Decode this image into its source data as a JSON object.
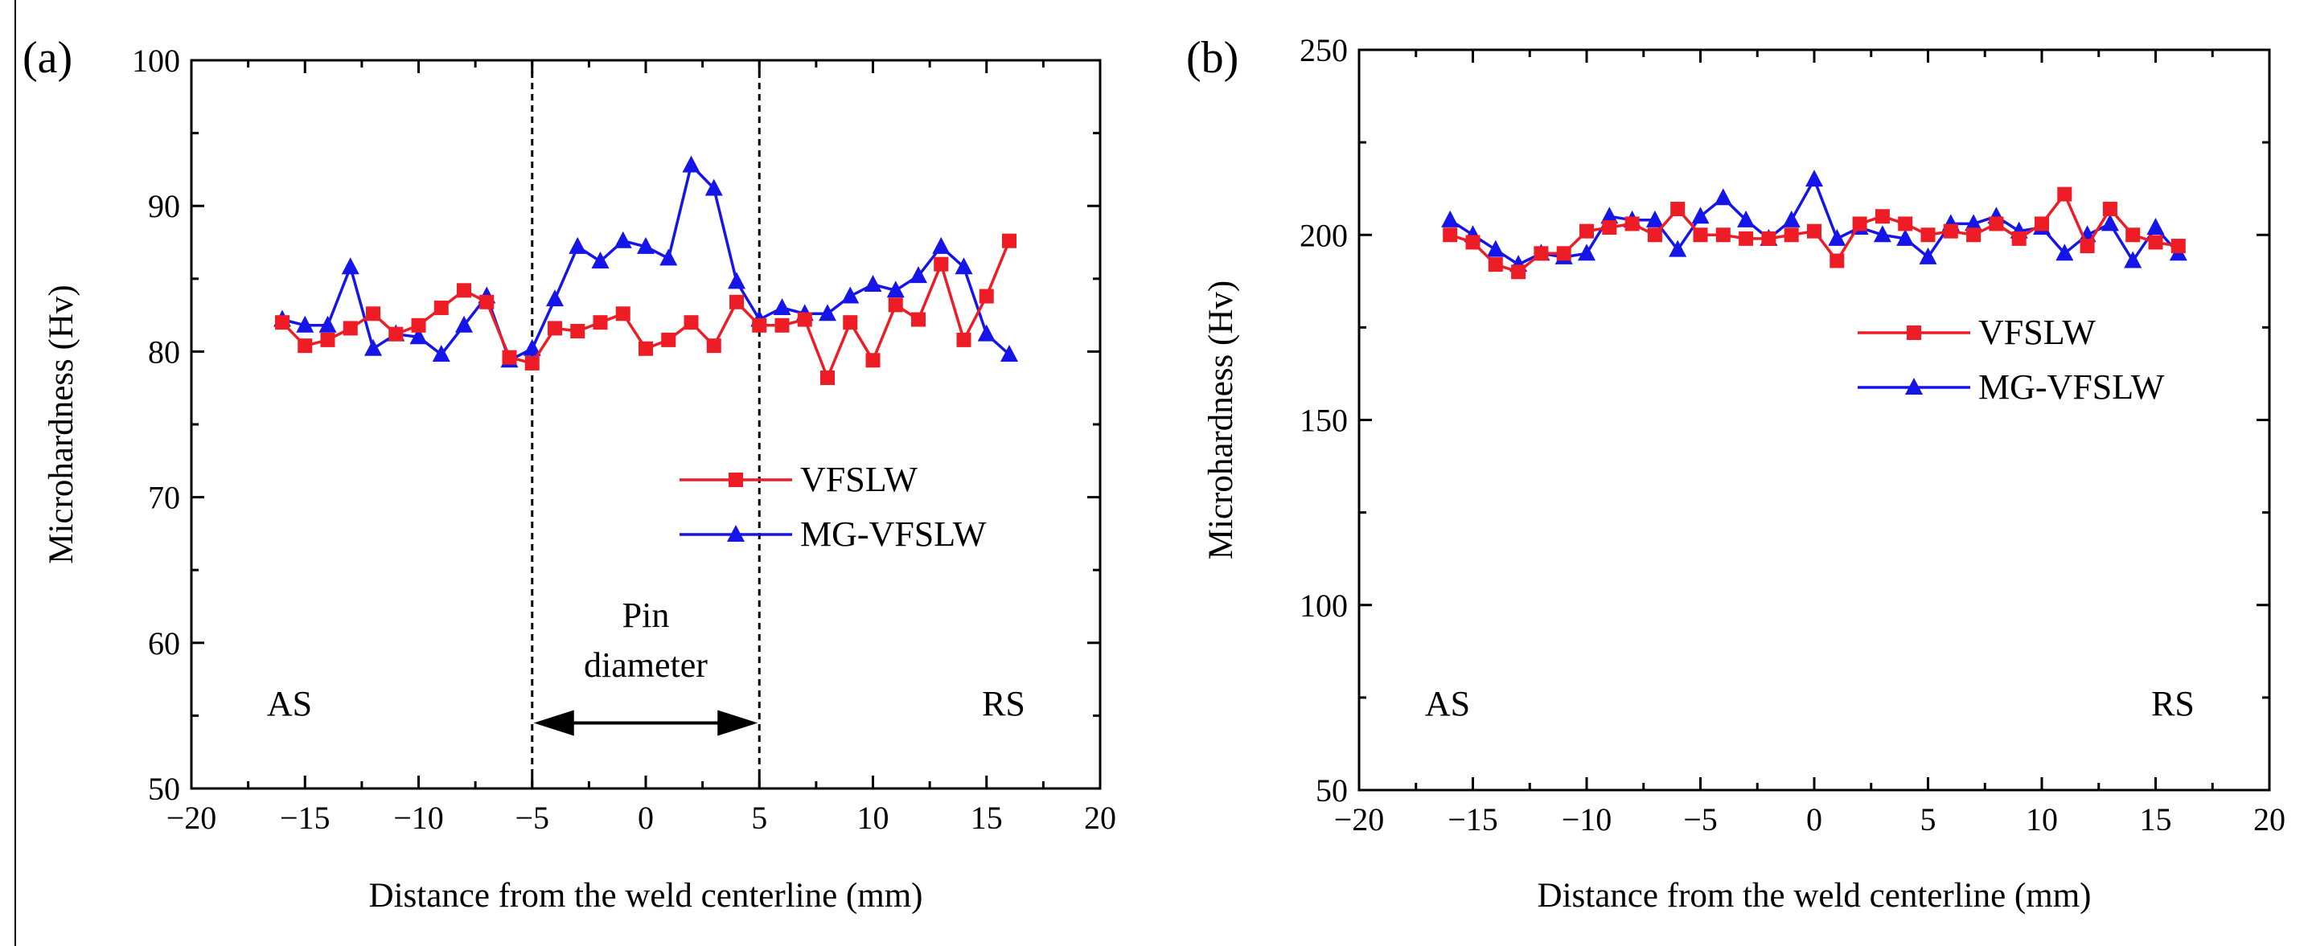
{
  "chart_data": [
    {
      "type": "line",
      "panel_label": "(a)",
      "xlabel": "Distance from the weld centerline (mm)",
      "ylabel": "Microhardness (Hv)",
      "xlim": [
        -20,
        20
      ],
      "ylim": [
        50,
        100
      ],
      "xticks": [
        -20,
        -15,
        -10,
        -5,
        0,
        5,
        10,
        15,
        20
      ],
      "yticks": [
        50,
        60,
        70,
        80,
        90,
        100
      ],
      "xtick_labels": [
        "−20",
        "−15",
        "−10",
        "−5",
        "0",
        "5",
        "10",
        "15",
        "20"
      ],
      "ytick_labels": [
        "50",
        "60",
        "70",
        "80",
        "90",
        "100"
      ],
      "legend": "center-right",
      "annotations": {
        "as": "AS",
        "rs": "RS",
        "pin_line1": "Pin",
        "pin_line2": "diameter"
      },
      "vlines": [
        -5,
        5
      ],
      "pin_arrow_y": 54.5,
      "series": [
        {
          "name": "VFSLW",
          "color": "#ee1c25",
          "marker": "square",
          "x": [
            -16,
            -15,
            -14,
            -13,
            -12,
            -11,
            -10,
            -9,
            -8,
            -7,
            -6,
            -5,
            -4,
            -3,
            -2,
            -1,
            0,
            1,
            2,
            3,
            4,
            5,
            6,
            7,
            8,
            9,
            10,
            11,
            12,
            13,
            14,
            15,
            16
          ],
          "values": [
            82.0,
            80.4,
            80.8,
            81.6,
            82.6,
            81.2,
            81.8,
            83.0,
            84.2,
            83.4,
            79.6,
            79.2,
            81.6,
            81.4,
            82.0,
            82.6,
            80.2,
            80.8,
            82.0,
            80.4,
            83.4,
            81.8,
            81.8,
            82.2,
            78.2,
            82.0,
            79.4,
            83.2,
            82.2,
            86.0,
            80.8,
            83.8,
            87.6
          ]
        },
        {
          "name": "MG-VFSLW",
          "color": "#1515ea",
          "marker": "triangle",
          "x": [
            -16,
            -15,
            -14,
            -13,
            -12,
            -11,
            -10,
            -9,
            -8,
            -7,
            -6,
            -5,
            -4,
            -3,
            -2,
            -1,
            0,
            1,
            2,
            3,
            4,
            5,
            6,
            7,
            8,
            9,
            10,
            11,
            12,
            13,
            14,
            15,
            16
          ],
          "values": [
            82.2,
            81.8,
            81.8,
            85.8,
            80.2,
            81.2,
            81.0,
            79.8,
            81.8,
            83.8,
            79.4,
            80.2,
            83.6,
            87.2,
            86.2,
            87.6,
            87.2,
            86.4,
            92.8,
            91.2,
            84.8,
            82.2,
            83.0,
            82.6,
            82.6,
            83.8,
            84.6,
            84.2,
            85.2,
            87.2,
            85.8,
            81.2,
            79.8
          ]
        }
      ]
    },
    {
      "type": "line",
      "panel_label": "(b)",
      "xlabel": "Distance from the weld centerline (mm)",
      "ylabel": "Microhardness (Hv)",
      "xlim": [
        -20,
        20
      ],
      "ylim": [
        50,
        250
      ],
      "xticks": [
        -20,
        -15,
        -10,
        -5,
        0,
        5,
        10,
        15,
        20
      ],
      "yticks": [
        50,
        100,
        150,
        200,
        250
      ],
      "xtick_labels": [
        "−20",
        "−15",
        "−10",
        "−5",
        "0",
        "5",
        "10",
        "15",
        "20"
      ],
      "ytick_labels": [
        "50",
        "100",
        "150",
        "200",
        "250"
      ],
      "legend": "upper-right",
      "annotations": {
        "as": "AS",
        "rs": "RS"
      },
      "series": [
        {
          "name": "VFSLW",
          "color": "#ee1c25",
          "marker": "square",
          "x": [
            -16,
            -15,
            -14,
            -13,
            -12,
            -11,
            -10,
            -9,
            -8,
            -7,
            -6,
            -5,
            -4,
            -3,
            -2,
            -1,
            0,
            1,
            2,
            3,
            4,
            5,
            6,
            7,
            8,
            9,
            10,
            11,
            12,
            13,
            14,
            15,
            16
          ],
          "values": [
            200,
            198,
            192,
            190,
            195,
            195,
            201,
            202,
            203,
            200,
            207,
            200,
            200,
            199,
            199,
            200,
            201,
            193,
            203,
            205,
            203,
            200,
            201,
            200,
            203,
            199,
            203,
            211,
            197,
            207,
            200,
            198,
            197
          ]
        },
        {
          "name": "MG-VFSLW",
          "color": "#1515ea",
          "marker": "triangle",
          "x": [
            -16,
            -15,
            -14,
            -13,
            -12,
            -11,
            -10,
            -9,
            -8,
            -7,
            -6,
            -5,
            -4,
            -3,
            -2,
            -1,
            0,
            1,
            2,
            3,
            4,
            5,
            6,
            7,
            8,
            9,
            10,
            11,
            12,
            13,
            14,
            15,
            16
          ],
          "values": [
            204,
            200,
            196,
            192,
            195,
            194,
            195,
            205,
            204,
            204,
            196,
            205,
            210,
            204,
            199,
            204,
            215,
            199,
            202,
            200,
            199,
            194,
            203,
            203,
            205,
            201,
            202,
            195,
            200,
            203,
            193,
            202,
            195
          ]
        }
      ]
    }
  ]
}
